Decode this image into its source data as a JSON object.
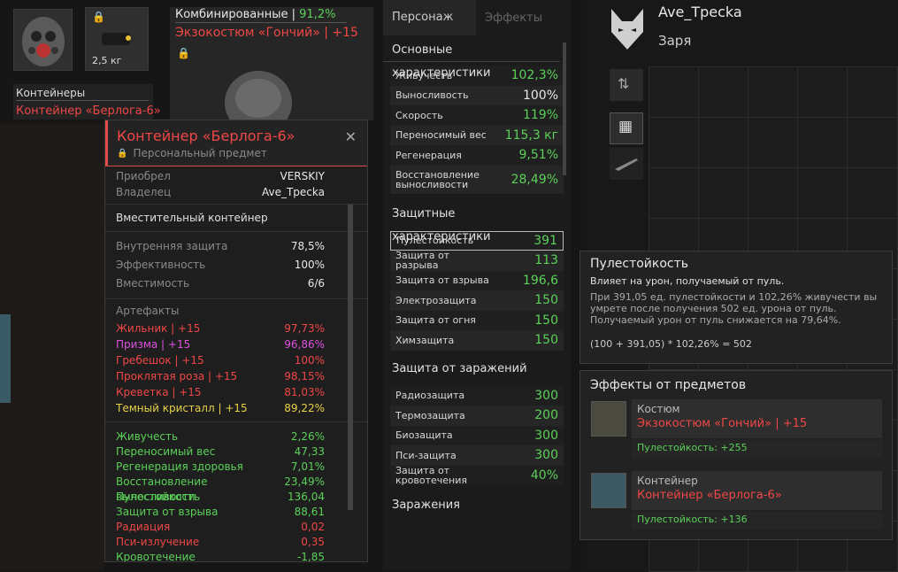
{
  "top_slots": {
    "weight": "2,5 кг",
    "combo_label": "Комбинированные | ",
    "combo_value": "91,2%",
    "suit_name": "Экзокостюм «Гончий» | +15"
  },
  "left_containers": {
    "title": "Контейнеры",
    "item": "Контейнер «Берлога-6»"
  },
  "popup": {
    "title": "Контейнер «Берлога-6»",
    "subtitle": "Персональный предмет",
    "info": [
      {
        "label": "Приобрел",
        "value": "VERSKIY"
      },
      {
        "label": "Владелец",
        "value": "Ave_Трecka"
      }
    ],
    "type": "Вместительный контейнер",
    "props": [
      {
        "label": "Внутренняя защита",
        "value": "78,5%"
      },
      {
        "label": "Эффективность",
        "value": "100%"
      },
      {
        "label": "Вместимость",
        "value": "6/6"
      }
    ],
    "artifacts_title": "Артефакты",
    "artifacts": [
      {
        "name": "Жильник | +15",
        "value": "97,73%",
        "color": "#ef4747"
      },
      {
        "name": "Призма | +15",
        "value": "96,86%",
        "color": "#e050e0"
      },
      {
        "name": "Гребешок | +15",
        "value": "100%",
        "color": "#ef4747"
      },
      {
        "name": "Проклятая роза | +15",
        "value": "98,15%",
        "color": "#ef4747"
      },
      {
        "name": "Креветка | +15",
        "value": "81,03%",
        "color": "#ef4747"
      },
      {
        "name": "Темный кристалл | +15",
        "value": "89,22%",
        "color": "#e6d24a"
      }
    ],
    "bonuses": [
      {
        "name": "Живучесть",
        "value": "2,26%",
        "color": "#5bd158"
      },
      {
        "name": "Переносимый вес",
        "value": "47,33",
        "color": "#5bd158"
      },
      {
        "name": "Регенерация здоровья",
        "value": "7,01%",
        "color": "#5bd158"
      },
      {
        "name": "Восстановление выносливости",
        "value": "23,49%",
        "color": "#5bd158"
      },
      {
        "name": "Пулестойкость",
        "value": "136,04",
        "color": "#5bd158"
      },
      {
        "name": "Защита от взрыва",
        "value": "88,61",
        "color": "#5bd158"
      },
      {
        "name": "Радиация",
        "value": "0,02",
        "color": "#ef4747"
      },
      {
        "name": "Пси-излучение",
        "value": "0,35",
        "color": "#ef4747"
      },
      {
        "name": "Кровотечение",
        "value": "-1,85",
        "color": "#5bd158"
      }
    ]
  },
  "mid": {
    "tabs": [
      "Персонаж",
      "Эффекты"
    ],
    "basic_title": "Основные характеристики",
    "basic": [
      {
        "label": "Живучесть",
        "value": "102,3%",
        "color": "#5bd158"
      },
      {
        "label": "Выносливость",
        "value": "100%",
        "color": "#e8e8e8"
      },
      {
        "label": "Скорость",
        "value": "119%",
        "color": "#5bd158"
      },
      {
        "label": "Переносимый вес",
        "value": "115,3 кг",
        "color": "#5bd158"
      },
      {
        "label": "Регенерация",
        "value": "9,51%",
        "color": "#5bd158"
      },
      {
        "label": "Восстановление выносливости",
        "value": "28,49%",
        "color": "#5bd158"
      }
    ],
    "protect_title": "Защитные характеристики",
    "protect": [
      {
        "label": "Пулестойкость",
        "value": "391"
      },
      {
        "label": "Защита от разрыва",
        "value": "113"
      },
      {
        "label": "Защита от взрыва",
        "value": "196,6"
      },
      {
        "label": "Электрозащита",
        "value": "150"
      },
      {
        "label": "Защита от огня",
        "value": "150"
      },
      {
        "label": "Химзащита",
        "value": "150"
      }
    ],
    "infect_title": "Защита от заражений",
    "infect": [
      {
        "label": "Радиозащита",
        "value": "300"
      },
      {
        "label": "Термозащита",
        "value": "200"
      },
      {
        "label": "Биозащита",
        "value": "300"
      },
      {
        "label": "Пси-защита",
        "value": "300"
      },
      {
        "label": "Защита от кровотечения",
        "value": "40%"
      }
    ],
    "contam_title": "Заражения"
  },
  "profile": {
    "name": "Ave_Трecka",
    "faction": "Заря"
  },
  "tooltip": {
    "title": "Пулестойкость",
    "desc": "Влияет на урон, получаемый от пуль.",
    "line1": "При 391,05 ед. пулестойкости и 102,26% живучести вы",
    "line2": "умрете после получения 502 ед. урона от пуль.",
    "line3": "Получаемый урон от пуль снижается на 79,64%.",
    "formula": "(100 + 391,05) * 102,26% = 502"
  },
  "effects": {
    "title": "Эффекты от предметов",
    "items": [
      {
        "category": "Костюм",
        "name": "Экзокостюм «Гончий» | +15",
        "bonus": "Пулестойкость: +255"
      },
      {
        "category": "Контейнер",
        "name": "Контейнер «Берлога-6»",
        "bonus": "Пулестойкость: +136"
      }
    ]
  }
}
